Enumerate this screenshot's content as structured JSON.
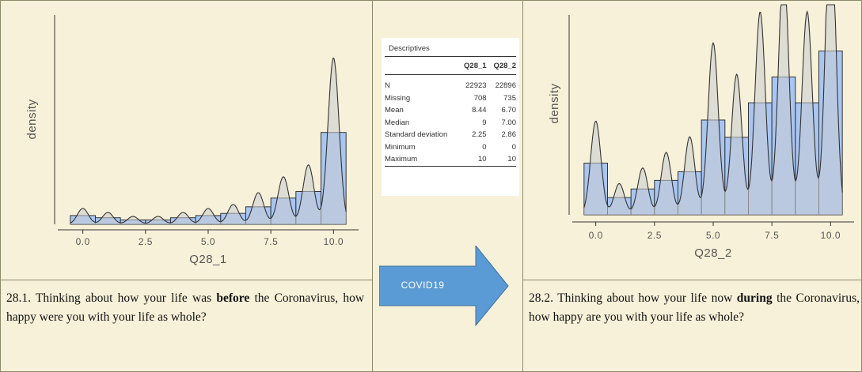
{
  "chart_data": [
    {
      "type": "histogram",
      "xlabel": "Q28_1",
      "ylabel": "density",
      "bins": [
        -0.5,
        0.5,
        1.5,
        2.5,
        3.5,
        4.5,
        5.5,
        6.5,
        7.5,
        8.5,
        9.5,
        10.5
      ],
      "values": [
        0.04,
        0.03,
        0.02,
        0.02,
        0.03,
        0.04,
        0.05,
        0.08,
        0.12,
        0.15,
        0.42
      ],
      "color": "#a9c6f2",
      "density_curve": true,
      "xlim": [
        -1,
        11
      ],
      "ylim": [
        0,
        0.95
      ],
      "xticks": [
        {
          "value": 0,
          "label": "0.0"
        },
        {
          "value": 2.5,
          "label": "2.5"
        },
        {
          "value": 5,
          "label": "5.0"
        },
        {
          "value": 7.5,
          "label": "7.5"
        },
        {
          "value": 10,
          "label": "10.0"
        }
      ]
    },
    {
      "type": "histogram",
      "xlabel": "Q28_2",
      "ylabel": "density",
      "bins": [
        -0.5,
        0.5,
        1.5,
        2.5,
        3.5,
        4.5,
        5.5,
        6.5,
        7.5,
        8.5,
        9.5,
        10.5
      ],
      "values": [
        0.06,
        0.02,
        0.03,
        0.04,
        0.05,
        0.11,
        0.09,
        0.13,
        0.16,
        0.13,
        0.19
      ],
      "color": "#a9c6f2",
      "density_curve": true,
      "xlim": [
        -1,
        11
      ],
      "ylim": [
        0,
        0.23
      ],
      "xticks": [
        {
          "value": 0,
          "label": "0.0"
        },
        {
          "value": 2.5,
          "label": "2.5"
        },
        {
          "value": 5,
          "label": "5.0"
        },
        {
          "value": 7.5,
          "label": "7.5"
        },
        {
          "value": 10,
          "label": "10.0"
        }
      ]
    }
  ],
  "descriptives": {
    "title": "Descriptives",
    "columns": [
      "Q28_1",
      "Q28_2"
    ],
    "rows": [
      [
        "N",
        "22923",
        "22896"
      ],
      [
        "Missing",
        "708",
        "735"
      ],
      [
        "Mean",
        "8.44",
        "6.70"
      ],
      [
        "Median",
        "9",
        "7.00"
      ],
      [
        "Standard deviation",
        "2.25",
        "2.86"
      ],
      [
        "Minimum",
        "0",
        "0"
      ],
      [
        "Maximum",
        "10",
        "10"
      ]
    ]
  },
  "arrow": {
    "label": "COVID19"
  },
  "captions": [
    {
      "start": "28.1. Thinking about how your life was",
      "emphasis": "before",
      "end": "the Coronavirus, how happy were you with your life as whole?"
    },
    {
      "start": "28.2. Thinking about how your life now",
      "emphasis": "during",
      "end": "the Coronavirus, how happy are you with your life as whole?"
    }
  ]
}
